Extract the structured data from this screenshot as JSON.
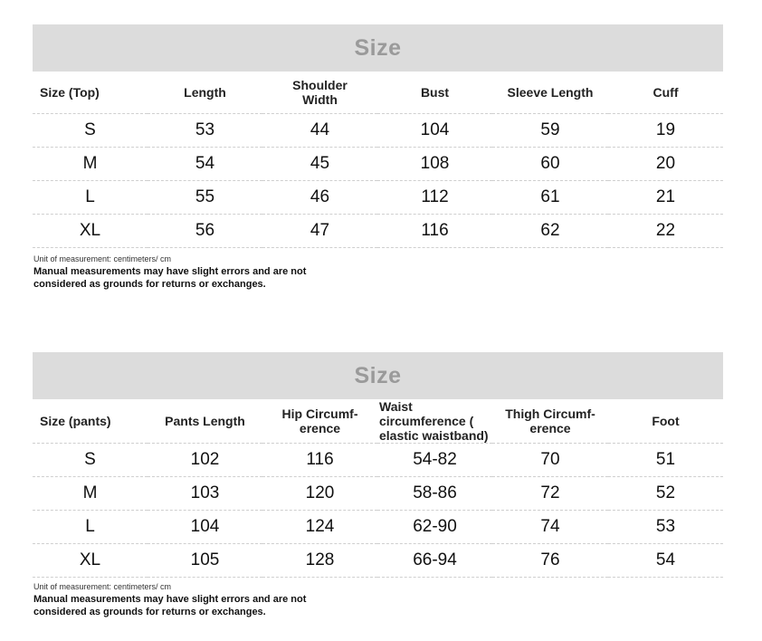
{
  "tops": {
    "banner": "Size",
    "headers": [
      "Size (Top)",
      "Length",
      "Shoulder Width",
      "Bust",
      "Sleeve Length",
      "Cuff"
    ],
    "rows": [
      [
        "S",
        "53",
        "44",
        "104",
        "59",
        "19"
      ],
      [
        "M",
        "54",
        "45",
        "108",
        "60",
        "20"
      ],
      [
        "L",
        "55",
        "46",
        "112",
        "61",
        "21"
      ],
      [
        "XL",
        "56",
        "47",
        "116",
        "62",
        "22"
      ]
    ],
    "unit_note": "Unit of measurement: centimeters/ cm",
    "warning": "Manual measurements may have slight errors and are not considered as grounds for returns or exchanges."
  },
  "pants": {
    "banner": "Size",
    "headers": [
      "Size (pants)",
      "Pants Length",
      "Hip Circumf- erence",
      "Waist circumference ( elastic waistband)",
      "Thigh Circumf- erence",
      "Foot"
    ],
    "rows": [
      [
        "S",
        "102",
        "116",
        "54-82",
        "70",
        "51"
      ],
      [
        "M",
        "103",
        "120",
        "58-86",
        "72",
        "52"
      ],
      [
        "L",
        "104",
        "124",
        "62-90",
        "74",
        "53"
      ],
      [
        "XL",
        "105",
        "128",
        "66-94",
        "76",
        "54"
      ]
    ],
    "unit_note": "Unit of measurement: centimeters/ cm",
    "warning": "Manual measurements may have slight errors and are not considered as grounds for returns or exchanges."
  }
}
